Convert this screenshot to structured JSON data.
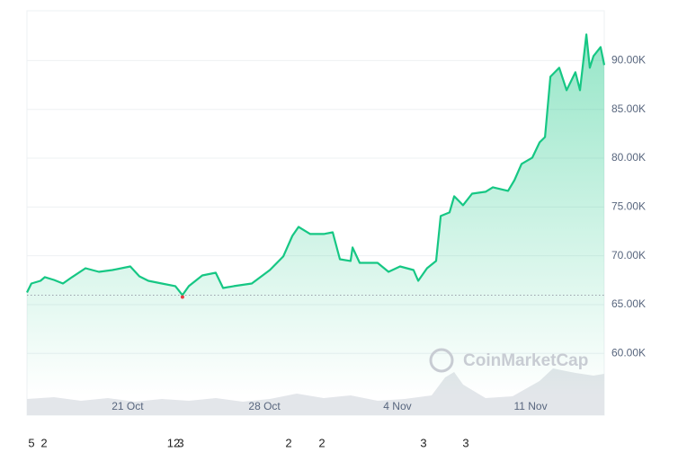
{
  "chart_data": {
    "type": "line",
    "x": [
      0,
      0.23,
      0.7,
      0.93,
      1.4,
      1.87,
      2.34,
      3.04,
      3.74,
      4.44,
      5.37,
      5.84,
      6.31,
      7.01,
      7.71,
      8.08,
      8.41,
      9.11,
      9.81,
      10.19,
      10.75,
      11.68,
      12.62,
      13.32,
      13.79,
      14.11,
      14.72,
      15.42,
      15.89,
      16.26,
      16.82,
      16.92,
      17.29,
      18.22,
      18.79,
      19.39,
      20.09,
      20.33,
      20.79,
      21.26,
      21.5,
      21.96,
      22.2,
      22.66,
      23.13,
      23.83,
      24.21,
      25,
      25.33,
      25.7,
      26.26,
      26.64,
      26.92,
      27.2,
      27.66,
      28.04,
      28.5,
      28.74,
      29.07,
      29.25,
      29.44,
      29.81,
      30
    ],
    "values": [
      66240,
      67160,
      67440,
      67810,
      67530,
      67160,
      67810,
      68730,
      68360,
      68545,
      68910,
      67900,
      67440,
      67160,
      66890,
      65970,
      66890,
      67990,
      68270,
      66700,
      66890,
      67160,
      68545,
      69930,
      72040,
      72960,
      72230,
      72230,
      72410,
      69650,
      69470,
      70850,
      69280,
      69280,
      68360,
      68910,
      68545,
      67440,
      68730,
      69470,
      74070,
      74440,
      76100,
      75180,
      76370,
      76560,
      77020,
      76650,
      77750,
      79410,
      80060,
      81620,
      82170,
      88340,
      89260,
      86960,
      88800,
      86960,
      92670,
      89260,
      90460,
      91380,
      89540
    ],
    "color": "#16c784",
    "baseline": 65970,
    "low_marker_color": "#ea3943",
    "xlim": [
      0,
      30
    ],
    "xticks": [
      {
        "value": 5.23,
        "label": "21 Oct"
      },
      {
        "value": 12.34,
        "label": "28 Oct"
      },
      {
        "value": 19.25,
        "label": "4 Nov"
      },
      {
        "value": 26.17,
        "label": "11 Nov"
      }
    ],
    "ylim": [
      55700,
      95100
    ],
    "yticks": [
      {
        "value": 60000,
        "label": "60.00K"
      },
      {
        "value": 65000,
        "label": "65.00K"
      },
      {
        "value": 70000,
        "label": "70.00K"
      },
      {
        "value": 75000,
        "label": "75.00K"
      },
      {
        "value": 80000,
        "label": "80.00K"
      },
      {
        "value": 85000,
        "label": "85.00K"
      },
      {
        "value": 90000,
        "label": "90.00K"
      }
    ],
    "grid": true,
    "watermark": "CoinMarketCap",
    "footer_labels": [
      "5",
      "2",
      "12",
      "3",
      "2",
      "2",
      "3",
      "3"
    ]
  }
}
